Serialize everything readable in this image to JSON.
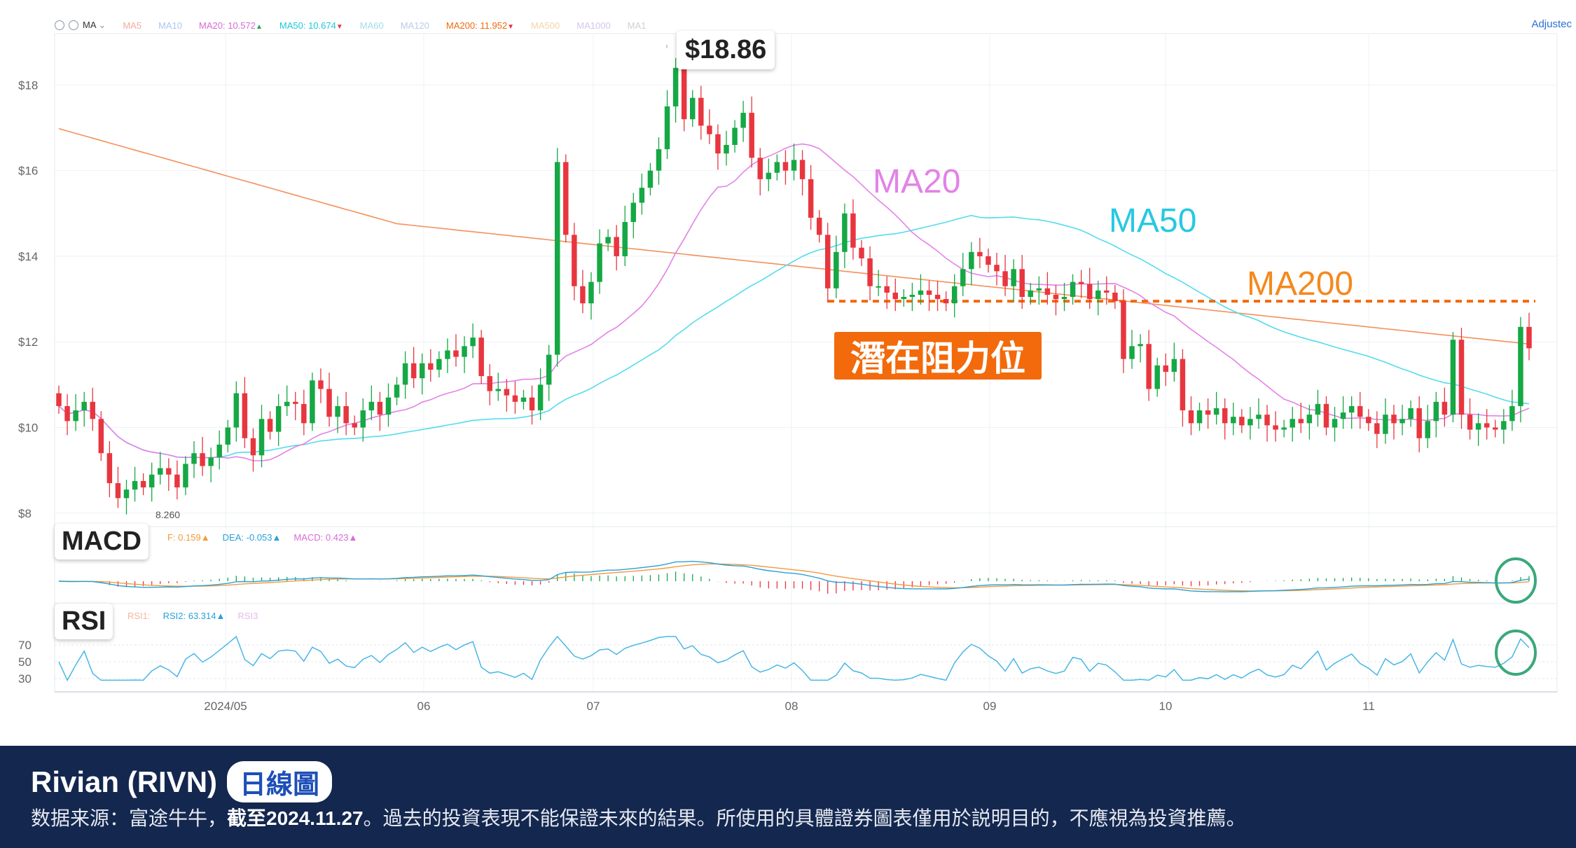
{
  "legend": {
    "ma_selector": "MA",
    "items": [
      {
        "label": "MA5",
        "value": "",
        "dir": "",
        "color": "#f4a9a0"
      },
      {
        "label": "MA10",
        "value": "",
        "dir": "",
        "color": "#a9c7f0"
      },
      {
        "label": "MA20:",
        "value": "10.572",
        "dir": "▲",
        "color": "#d86bd6"
      },
      {
        "label": "MA50:",
        "value": "10.674",
        "dir": "▼",
        "color": "#1bc8de"
      },
      {
        "label": "MA60",
        "value": "",
        "dir": "",
        "color": "#9fe0e8"
      },
      {
        "label": "MA120",
        "value": "",
        "dir": "",
        "color": "#b9cce8"
      },
      {
        "label": "MA200:",
        "value": "11.952",
        "dir": "▼",
        "color": "#f26a0b"
      },
      {
        "label": "MA500",
        "value": "",
        "dir": "",
        "color": "#f6d3a8"
      },
      {
        "label": "MA1000",
        "value": "",
        "dir": "",
        "color": "#d3c6ee"
      },
      {
        "label": "MA1",
        "value": "",
        "dir": "",
        "color": "#cfcfcf"
      }
    ],
    "adjusted": "Adjustec"
  },
  "annotations": {
    "high_price": "$18.86",
    "low_price": "8.260",
    "ma20_label": "MA20",
    "ma50_label": "MA50",
    "ma200_label": "MA200",
    "resistance": "潛在阻力位"
  },
  "macd_panel": {
    "tag": "MACD",
    "dif": "F: 0.159▲",
    "dea_label": "DEA:",
    "dea_value": "-0.053▲",
    "macd_label": "MACD:",
    "macd_value": "0.423▲"
  },
  "rsi_panel": {
    "tag": "RSI",
    "rsi1": "RSI1:",
    "rsi2_label": "RSI2:",
    "rsi2_value": "63.314▲",
    "rsi3": "RSI3",
    "ticks": [
      "70",
      "50",
      "30"
    ]
  },
  "colors": {
    "up": "#15a844",
    "down": "#e8363f",
    "ma20": "#e283e6",
    "ma50": "#54dbee",
    "ma200": "#f4915a",
    "resistance": "#f26a0b",
    "dif": "#2aa0d8",
    "dea": "#f39a3c",
    "rsi": "#48b7e6",
    "highlight_circle": "#3aa87a"
  },
  "chart_data": {
    "type": "candlestick",
    "title": "",
    "y_ticks": [
      "$18",
      "$16",
      "$14",
      "$12",
      "$10",
      "$8"
    ],
    "ylim": [
      7.8,
      19.2
    ],
    "x_tick_labels": [
      "2024/05",
      "06",
      "07",
      "08",
      "09",
      "10",
      "11"
    ],
    "resistance_level": 12.95,
    "high": 18.86,
    "low": 8.26,
    "closes": [
      10.5,
      10.15,
      10.4,
      10.6,
      10.2,
      9.4,
      8.7,
      8.35,
      8.55,
      8.75,
      8.6,
      8.9,
      9.05,
      8.9,
      8.6,
      9.15,
      9.4,
      9.1,
      9.3,
      9.6,
      10.0,
      10.8,
      9.75,
      9.35,
      10.2,
      9.9,
      10.5,
      10.6,
      10.55,
      10.1,
      11.1,
      10.9,
      10.25,
      10.5,
      10.1,
      10.0,
      10.4,
      10.6,
      10.3,
      10.7,
      11.0,
      11.5,
      11.15,
      11.5,
      11.35,
      11.6,
      11.8,
      11.65,
      11.9,
      12.1,
      11.2,
      10.85,
      10.9,
      10.75,
      10.6,
      10.7,
      10.4,
      11.0,
      11.7,
      16.2,
      14.5,
      13.3,
      12.9,
      13.4,
      14.3,
      14.45,
      14.0,
      14.8,
      15.25,
      15.6,
      16.0,
      16.5,
      17.5,
      18.4,
      17.2,
      17.7,
      17.05,
      16.85,
      16.4,
      16.6,
      17.0,
      17.35,
      16.3,
      15.8,
      15.95,
      16.2,
      16.0,
      16.25,
      15.8,
      14.9,
      14.5,
      13.25,
      14.1,
      15.0,
      14.2,
      13.95,
      13.3,
      13.3,
      13.15,
      13.0,
      13.05,
      13.1,
      13.2,
      13.1,
      13.0,
      12.9,
      13.3,
      13.7,
      14.1,
      14.0,
      13.8,
      13.65,
      13.3,
      13.7,
      13.05,
      13.2,
      13.25,
      13.1,
      13.0,
      13.05,
      13.4,
      13.35,
      13.0,
      13.2,
      13.15,
      12.95,
      11.6,
      11.9,
      11.95,
      10.9,
      11.45,
      11.3,
      11.6,
      10.4,
      10.1,
      10.4,
      10.3,
      10.45,
      10.1,
      10.25,
      10.05,
      10.2,
      10.3,
      10.05,
      9.95,
      10.0,
      10.2,
      10.1,
      10.3,
      10.55,
      10.0,
      10.2,
      10.35,
      10.5,
      10.25,
      10.1,
      9.85,
      10.3,
      10.1,
      10.2,
      10.45,
      9.75,
      10.15,
      10.6,
      10.3,
      12.05,
      10.3,
      9.95,
      10.1,
      10.0,
      9.95,
      10.15,
      10.5,
      12.35,
      11.85
    ]
  }
}
